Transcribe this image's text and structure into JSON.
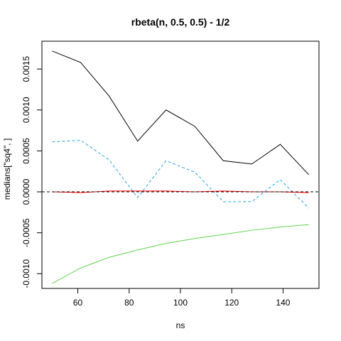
{
  "chart_data": {
    "type": "line",
    "title": "rbeta(n, 0.5, 0.5) - 1/2",
    "xlabel": "ns",
    "ylabel": "medians[\"sq4\", ]",
    "xlim": [
      46,
      154
    ],
    "ylim": [
      -0.00118,
      0.00184
    ],
    "xticks": [
      60,
      80,
      100,
      120,
      140
    ],
    "yticks": [
      -0.001,
      -0.0005,
      0.0,
      0.0005,
      0.001,
      0.0015
    ],
    "ytick_labels": [
      "-0.0010",
      "-0.0005",
      "0.0000",
      "0.0005",
      "0.0010",
      "0.0015"
    ],
    "grid": false,
    "legend": "none",
    "x": [
      50,
      61.1,
      72.2,
      83.3,
      94.4,
      105.6,
      116.7,
      127.8,
      138.9,
      150
    ],
    "series": [
      {
        "color": "#000000",
        "dash": "solid",
        "values": [
          0.00172,
          0.00158,
          0.00117,
          0.00062,
          0.001,
          0.0008,
          0.00038,
          0.00034,
          0.00058,
          0.00021
        ]
      },
      {
        "color": "#29a3e0",
        "dash": "dashed",
        "values": [
          0.00061,
          0.00063,
          0.00039,
          -7e-05,
          0.00038,
          0.00024,
          -0.00012,
          -0.00012,
          0.00015,
          -0.0002
        ]
      },
      {
        "color": "#ff0000",
        "dash": "solid",
        "values": [
          0.0,
          -1e-05,
          1e-05,
          1e-05,
          1e-05,
          0.0,
          1e-05,
          0.0,
          0.0,
          -1e-05
        ]
      },
      {
        "color": "#61d04f",
        "dash": "solid",
        "values": [
          -0.00112,
          -0.00093,
          -0.0008,
          -0.00071,
          -0.00063,
          -0.00057,
          -0.00052,
          -0.00047,
          -0.00043,
          -0.0004
        ]
      }
    ],
    "hline": {
      "y": 0,
      "color": "#000000",
      "dash": "dashed"
    }
  }
}
